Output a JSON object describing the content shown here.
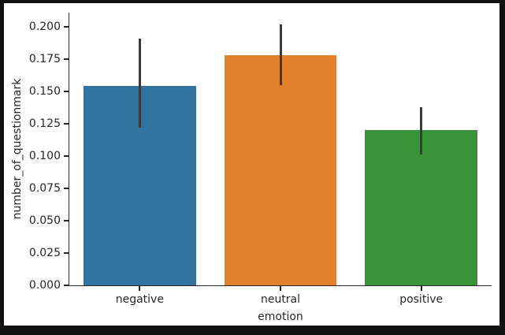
{
  "figure": {
    "frame_color": "#111111",
    "background_color": "#ffffff"
  },
  "chart_data": {
    "type": "bar",
    "title": "",
    "xlabel": "emotion",
    "ylabel": "number_of_questionmark",
    "categories": [
      "negative",
      "neutral",
      "positive"
    ],
    "values": [
      0.154,
      0.178,
      0.12
    ],
    "error_bars": [
      {
        "low": 0.122,
        "high": 0.191
      },
      {
        "low": 0.155,
        "high": 0.202
      },
      {
        "low": 0.101,
        "high": 0.138
      }
    ],
    "bar_colors": [
      "#3274a1",
      "#e1812c",
      "#3a923a"
    ],
    "error_bar_color": "#3a3a3a",
    "ylim": [
      0,
      0.211
    ],
    "ytick_labels": [
      "0.000",
      "0.025",
      "0.050",
      "0.075",
      "0.100",
      "0.125",
      "0.150",
      "0.175",
      "0.200"
    ],
    "bar_width_fraction": 0.8,
    "grid": false,
    "legend": "none",
    "spines": [
      "left",
      "bottom"
    ]
  }
}
